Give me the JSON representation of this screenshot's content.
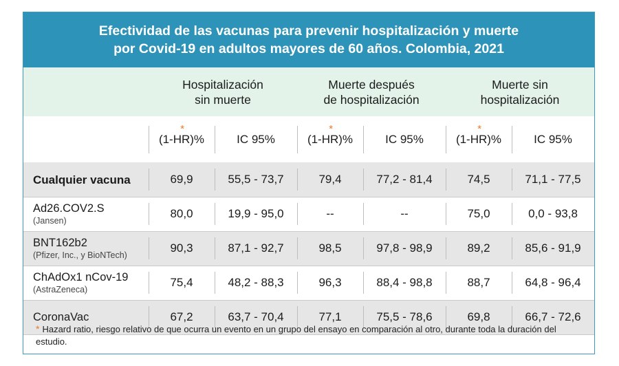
{
  "title": {
    "line1": "Efectividad de las vacunas para prevenir hospitalización y muerte",
    "line2": "por Covid-19 en adultos mayores de 60 años. Colombia, 2021"
  },
  "groups": [
    {
      "line1": "Hospitalización",
      "line2": "sin muerte"
    },
    {
      "line1": "Muerte después",
      "line2": "de hospitalización"
    },
    {
      "line1": "Muerte sin",
      "line2": "hospitalización"
    }
  ],
  "subheaders": {
    "effectiveness": "(1-HR)%",
    "ci": "IC 95%"
  },
  "accent_color": "#e8792c",
  "header_color": "#2e93b8",
  "chart_data": {
    "type": "table",
    "title": "Efectividad de las vacunas para prevenir hospitalización y muerte por Covid-19 en adultos mayores de 60 años. Colombia, 2021",
    "columns": [
      "Hospitalización sin muerte (1-HR)%",
      "Hospitalización sin muerte IC 95%",
      "Muerte después de hospitalización (1-HR)%",
      "Muerte después de hospitalización IC 95%",
      "Muerte sin hospitalización (1-HR)%",
      "Muerte sin hospitalización IC 95%"
    ],
    "rows": [
      {
        "name": "Cualquier vacuna",
        "sub": "",
        "values": [
          "69,9",
          "55,5 - 73,7",
          "79,4",
          "77,2 - 81,4",
          "74,5",
          "71,1 - 77,5"
        ]
      },
      {
        "name": "Ad26.COV2.S",
        "sub": "(Jansen)",
        "values": [
          "80,0",
          "19,9 - 95,0",
          "--",
          "--",
          "75,0",
          "0,0 - 93,8"
        ]
      },
      {
        "name": "BNT162b2",
        "sub": "(Pfizer, Inc., y BioNTech)",
        "values": [
          "90,3",
          "87,1 - 92,7",
          "98,5",
          "97,8 - 98,9",
          "89,2",
          "85,6 - 91,9"
        ]
      },
      {
        "name": "ChAdOx1 nCov-19",
        "sub": "(AstraZeneca)",
        "values": [
          "75,4",
          "48,2 - 88,3",
          "96,3",
          "88,4 - 98,8",
          "88,7",
          "64,8 - 96,4"
        ]
      },
      {
        "name": "CoronaVac",
        "sub": "",
        "values": [
          "67,2",
          "63,7 - 70,4",
          "77,1",
          "75,5 - 78,6",
          "69,8",
          "66,7 - 72,6"
        ]
      }
    ]
  },
  "footnote": "Hazard ratio, riesgo relativo de que ocurra un evento en un grupo del ensayo en comparación al otro, durante toda la duración del estudio."
}
